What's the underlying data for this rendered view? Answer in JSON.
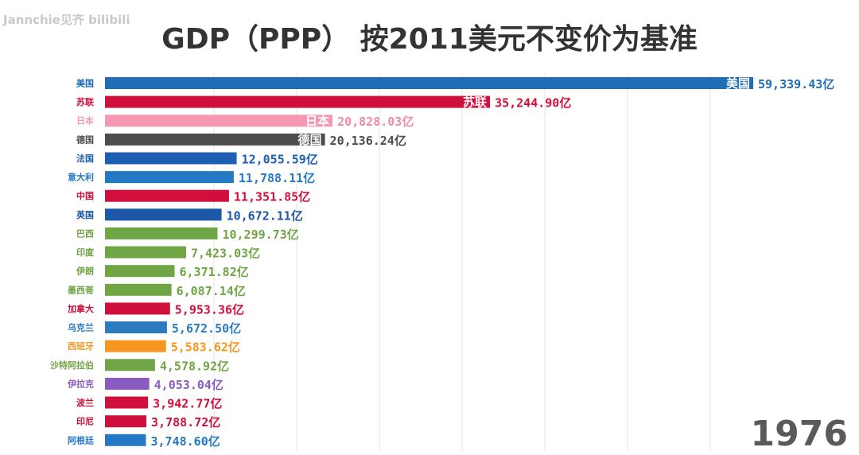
{
  "watermark": "Jannchie见齐 bilibili",
  "title": "GDP（PPP） 按2011美元不变价为基准",
  "year": "1976",
  "chart_data": {
    "type": "bar",
    "orientation": "horizontal",
    "title": "GDP（PPP） 按2011美元不变价为基准",
    "unit": "亿",
    "xlim": [
      0,
      60000
    ],
    "grid": true,
    "categories": [
      "美国",
      "苏联",
      "日本",
      "德国",
      "法国",
      "意大利",
      "中国",
      "英国",
      "巴西",
      "印度",
      "伊朗",
      "墨西哥",
      "加拿大",
      "乌克兰",
      "西班牙",
      "沙特阿拉伯",
      "伊拉克",
      "波兰",
      "印尼",
      "阿根廷"
    ],
    "values": [
      59339.43,
      35244.9,
      20828.03,
      20136.24,
      12055.59,
      11788.11,
      11351.85,
      10672.11,
      10299.73,
      7423.03,
      6371.82,
      6087.14,
      5953.36,
      5672.5,
      5583.62,
      4578.92,
      4053.04,
      3942.77,
      3788.72,
      3748.6
    ],
    "value_labels": [
      "59,339.43亿",
      "35,244.90亿",
      "20,828.03亿",
      "20,136.24亿",
      "12,055.59亿",
      "11,788.11亿",
      "11,351.85亿",
      "10,672.11亿",
      "10,299.73亿",
      "7,423.03亿",
      "6,371.82亿",
      "6,087.14亿",
      "5,953.36亿",
      "5,672.50亿",
      "5,583.62亿",
      "4,578.92亿",
      "4,053.04亿",
      "3,942.77亿",
      "3,788.72亿",
      "3,748.60亿"
    ],
    "colors": [
      "#1f6eb5",
      "#d10f3c",
      "#f599b3",
      "#4d4d4d",
      "#1d5fb0",
      "#2479c4",
      "#d10f3c",
      "#1c57a8",
      "#6fa544",
      "#6fa544",
      "#6fa544",
      "#6fa544",
      "#d10f3c",
      "#2a7bc0",
      "#f5961e",
      "#6fa544",
      "#8a5cc2",
      "#d10f3c",
      "#d10f3c",
      "#2479c4"
    ],
    "label_inside_bar": [
      true,
      true,
      true,
      true,
      false,
      false,
      false,
      false,
      false,
      false,
      false,
      false,
      false,
      false,
      false,
      false,
      false,
      false,
      false,
      false
    ]
  }
}
